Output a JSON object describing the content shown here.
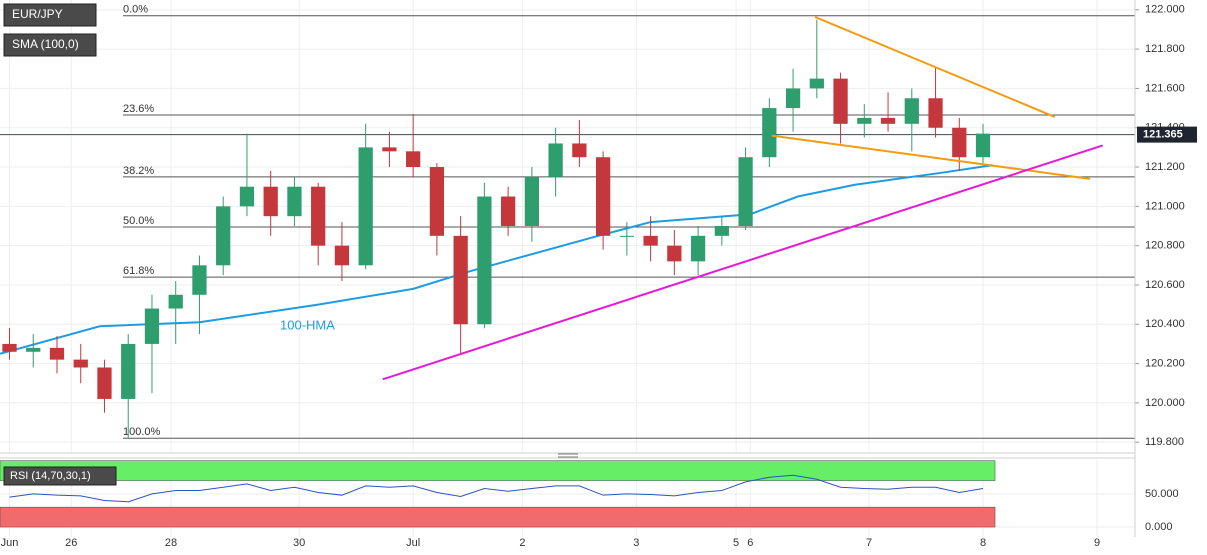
{
  "chart_data": [
    {
      "type": "candlestick",
      "labels": [
        "EUR/JPY",
        "SMA (100,0)"
      ],
      "x": [
        2,
        7,
        12,
        17,
        22,
        27,
        32,
        37,
        42,
        47,
        52,
        57,
        62,
        67,
        72,
        77,
        82,
        87,
        92,
        97,
        102,
        107,
        112,
        117,
        122,
        127,
        132,
        137,
        142,
        147,
        152,
        157,
        162,
        167,
        172,
        177,
        182,
        187,
        192,
        197,
        202,
        207
      ],
      "open": [
        120.3,
        120.26,
        120.28,
        120.22,
        120.18,
        120.02,
        120.3,
        120.48,
        120.55,
        120.7,
        121.0,
        121.1,
        120.95,
        121.1,
        120.8,
        120.7,
        121.3,
        121.28,
        121.2,
        120.85,
        120.4,
        121.05,
        120.9,
        121.15,
        121.32,
        121.25,
        120.85,
        120.85,
        120.8,
        120.72,
        120.85,
        120.9,
        121.25,
        121.5,
        121.6,
        121.65,
        121.42,
        121.45,
        121.42,
        121.55,
        121.4,
        121.25
      ],
      "high": [
        120.38,
        120.35,
        120.34,
        120.3,
        120.22,
        120.35,
        120.55,
        120.62,
        120.75,
        121.05,
        121.37,
        121.18,
        121.15,
        121.12,
        120.92,
        121.42,
        121.38,
        121.47,
        121.22,
        120.95,
        121.12,
        121.1,
        121.2,
        121.4,
        121.44,
        121.28,
        120.92,
        120.95,
        120.88,
        120.9,
        120.95,
        121.3,
        121.55,
        121.7,
        121.95,
        121.68,
        121.52,
        121.58,
        121.6,
        121.71,
        121.45,
        121.42
      ],
      "low": [
        120.22,
        120.18,
        120.15,
        120.1,
        119.95,
        119.82,
        120.05,
        120.3,
        120.35,
        120.65,
        120.95,
        120.85,
        120.9,
        120.7,
        120.62,
        120.68,
        121.2,
        121.15,
        120.75,
        120.25,
        120.38,
        120.85,
        120.82,
        121.05,
        121.2,
        120.78,
        120.75,
        120.72,
        120.65,
        120.65,
        120.8,
        120.88,
        121.2,
        121.38,
        121.55,
        121.32,
        121.35,
        121.38,
        121.28,
        121.35,
        121.18,
        121.22
      ],
      "close": [
        120.26,
        120.28,
        120.22,
        120.18,
        120.02,
        120.3,
        120.48,
        120.55,
        120.7,
        121.0,
        121.1,
        120.95,
        121.1,
        120.8,
        120.7,
        121.3,
        121.28,
        121.2,
        120.85,
        120.4,
        121.05,
        120.9,
        121.15,
        121.32,
        121.25,
        120.85,
        120.85,
        120.8,
        120.72,
        120.85,
        120.9,
        121.25,
        121.5,
        121.6,
        121.65,
        121.42,
        121.45,
        121.42,
        121.55,
        121.4,
        121.25,
        121.37
      ],
      "up_color": "#2f9e6e",
      "down_color": "#c4373a",
      "overlays": [
        {
          "name": "100-HMA",
          "color": "#1f9be3",
          "x": [
            0,
            21,
            42,
            67,
            87,
            99,
            126,
            137,
            158,
            168,
            180,
            198,
            209
          ],
          "values": [
            120.25,
            120.39,
            120.41,
            120.5,
            120.58,
            120.67,
            120.85,
            120.92,
            120.96,
            121.05,
            121.11,
            121.17,
            121.21
          ]
        }
      ],
      "trendlines": [
        {
          "color": "#f39c12",
          "x": [
            171.6,
            222.1
          ],
          "values": [
            121.964,
            121.455
          ]
        },
        {
          "color": "#f39c12",
          "x": [
            162.5,
            229.5
          ],
          "values": [
            121.36,
            121.14
          ]
        },
        {
          "color": "#e619d6",
          "x": [
            80.6,
            232.2
          ],
          "values": [
            120.12,
            121.31
          ]
        }
      ],
      "fib_levels": [
        {
          "label": "0.0%",
          "value": 121.97
        },
        {
          "label": "23.6%",
          "value": 121.465
        },
        {
          "label": "38.2%",
          "value": 121.15
        },
        {
          "label": "50.0%",
          "value": 120.895
        },
        {
          "label": "61.8%",
          "value": 120.64
        },
        {
          "label": "100.0%",
          "value": 119.82
        }
      ],
      "last_price": {
        "value": 121.365,
        "label": "121.365"
      },
      "xlim": [
        0,
        239
      ],
      "ylim": [
        119.75,
        122.05
      ],
      "xticks": [
        {
          "value": 2,
          "label": "Jun"
        },
        {
          "value": 15,
          "label": "26"
        },
        {
          "value": 36,
          "label": "28"
        },
        {
          "value": 63,
          "label": "30"
        },
        {
          "value": 87,
          "label": "Jul"
        },
        {
          "value": 110,
          "label": "2"
        },
        {
          "value": 134,
          "label": "3"
        },
        {
          "value": 155,
          "label": "5"
        },
        {
          "value": 158,
          "label": "6"
        },
        {
          "value": 183,
          "label": "7"
        },
        {
          "value": 207,
          "label": "8"
        },
        {
          "value": 231,
          "label": "9"
        }
      ],
      "yticks": [
        {
          "value": 122.0,
          "label": "122.000"
        },
        {
          "value": 121.8,
          "label": "121.800"
        },
        {
          "value": 121.6,
          "label": "121.600"
        },
        {
          "value": 121.4,
          "label": "121.400"
        },
        {
          "value": 121.2,
          "label": "121.200"
        },
        {
          "value": 121.0,
          "label": "121.000"
        },
        {
          "value": 120.8,
          "label": "120.800"
        },
        {
          "value": 120.6,
          "label": "120.600"
        },
        {
          "value": 120.4,
          "label": "120.400"
        },
        {
          "value": 120.2,
          "label": "120.200"
        },
        {
          "value": 120.0,
          "label": "120.000"
        },
        {
          "value": 119.8,
          "label": "119.800"
        }
      ],
      "grid": true
    },
    {
      "type": "line",
      "title": "RSI (14,70,30,1)",
      "series": [
        {
          "color": "#2b54c4",
          "values": [
            45,
            50,
            48,
            47,
            40,
            38,
            50,
            55,
            55,
            60,
            65,
            55,
            60,
            52,
            48,
            62,
            60,
            62,
            52,
            46,
            58,
            54,
            58,
            62,
            62,
            48,
            50,
            49,
            47,
            52,
            55,
            68,
            75,
            78,
            72,
            60,
            58,
            57,
            60,
            60,
            52,
            58
          ]
        }
      ],
      "bands": [
        {
          "from": 70,
          "to": 100,
          "color": "#66ee66"
        },
        {
          "from": 0,
          "to": 30,
          "color": "#f26b6b"
        }
      ],
      "ylim": [
        -15,
        101
      ],
      "yticks": [
        {
          "value": 0,
          "label": "0.000"
        },
        {
          "value": 50,
          "label": "50.000"
        }
      ],
      "grid": true
    }
  ]
}
